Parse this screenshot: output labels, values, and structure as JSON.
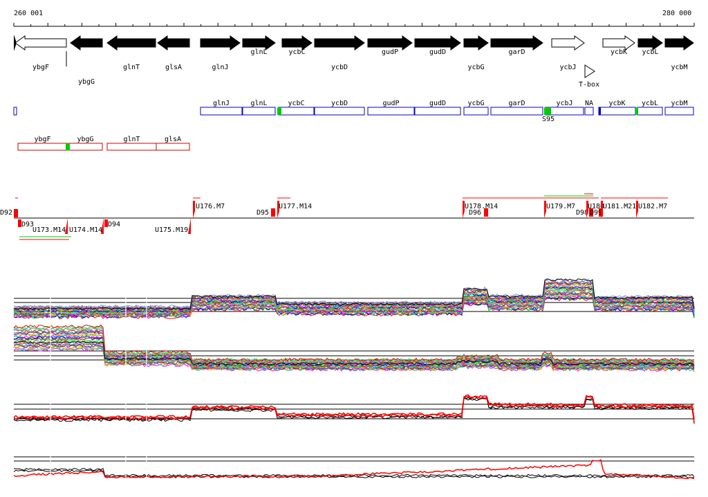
{
  "coordinates": {
    "start_label": "260 001",
    "end_label": "280 000"
  },
  "genes": [
    {
      "name": "ybgF",
      "strand": "-",
      "filled": false,
      "label_row": 2
    },
    {
      "name": "ybgG",
      "strand": "-",
      "filled": true,
      "label_row": 3
    },
    {
      "name": "glnT",
      "strand": "-",
      "filled": true,
      "label_row": 2
    },
    {
      "name": "glsA",
      "strand": "-",
      "filled": true,
      "label_row": 2
    },
    {
      "name": "glnJ",
      "strand": "+",
      "filled": true,
      "label_row": 2
    },
    {
      "name": "glnL",
      "strand": "+",
      "filled": true,
      "label_row": 1
    },
    {
      "name": "ycbC",
      "strand": "+",
      "filled": true,
      "label_row": 1
    },
    {
      "name": "ycbD",
      "strand": "+",
      "filled": true,
      "label_row": 2
    },
    {
      "name": "gudP",
      "strand": "+",
      "filled": true,
      "label_row": 1
    },
    {
      "name": "gudD",
      "strand": "+",
      "filled": true,
      "label_row": 1
    },
    {
      "name": "ycbG",
      "strand": "+",
      "filled": true,
      "label_row": 2
    },
    {
      "name": "garD",
      "strand": "+",
      "filled": true,
      "label_row": 1
    },
    {
      "name": "ycbJ",
      "strand": "+",
      "filled": false,
      "label_row": 2
    },
    {
      "name": "ycbK",
      "strand": "+",
      "filled": false,
      "label_row": 1
    },
    {
      "name": "ycbL",
      "strand": "+",
      "filled": true,
      "label_row": 1
    },
    {
      "name": "ycbM",
      "strand": "+",
      "filled": true,
      "label_row": 2
    }
  ],
  "tbox_label": "T-box",
  "operons_top": [
    "glnJ",
    "glnL",
    "ycbC",
    "ycbD",
    "gudP",
    "gudD",
    "ycbG",
    "garD",
    "ycbJ",
    "NA",
    "ycbK",
    "ycbL",
    "ycbM"
  ],
  "s_site_label": "S95",
  "operons_bottom": [
    "ybgF",
    "ybgG",
    "glnT",
    "glsA"
  ],
  "segments_upper": [
    "U176.M7",
    "D95",
    "U177.M14",
    "U178.M14",
    "D96",
    "U179.M7",
    "D98",
    "U180",
    "D99",
    "U181.M21",
    "U182.M7"
  ],
  "segments_lower": [
    "D92",
    "D93",
    "U173.M14",
    "U174.M14",
    "D94",
    "U175.M19"
  ],
  "colors": {
    "gene": "#000000",
    "operon_top": "#0000cc",
    "operon_bottom": "#cc0000",
    "site": "#00cc00",
    "segment": "#ff0000",
    "highlight_red": "#ff0000"
  }
}
